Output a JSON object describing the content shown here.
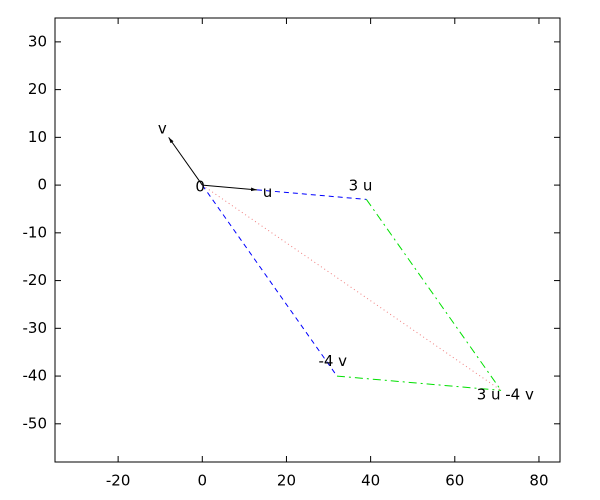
{
  "chart_data": {
    "type": "vector",
    "xlim": [
      -35,
      85
    ],
    "ylim": [
      -58,
      35
    ],
    "xticks": [
      -20,
      0,
      20,
      40,
      60,
      80
    ],
    "yticks": [
      -50,
      -40,
      -30,
      -20,
      -10,
      0,
      10,
      20,
      30
    ],
    "series": [
      {
        "color": "#000000",
        "style": "arrow",
        "x": [
          0,
          13
        ],
        "values": [
          0,
          -1
        ]
      },
      {
        "color": "#000000",
        "style": "arrow",
        "x": [
          0,
          -8
        ],
        "values": [
          0,
          10
        ]
      },
      {
        "color": "#0000ff",
        "style": "dashed",
        "x": [
          13,
          39
        ],
        "values": [
          -1,
          -3
        ]
      },
      {
        "color": "#0000ff",
        "style": "dashed",
        "x": [
          0,
          32
        ],
        "values": [
          0,
          -40
        ]
      },
      {
        "color": "#00e000",
        "style": "dashdot",
        "x": [
          39,
          71
        ],
        "values": [
          -3,
          -43
        ]
      },
      {
        "color": "#00e000",
        "style": "dashdot",
        "x": [
          32,
          71
        ],
        "values": [
          -40,
          -43
        ]
      },
      {
        "color": "#f08080",
        "style": "dotted",
        "x": [
          0,
          71
        ],
        "values": [
          0,
          -43
        ]
      }
    ],
    "annotations": [
      {
        "text": "v",
        "x": -9.5,
        "y": 11.7
      },
      {
        "text": "0",
        "x": -0.5,
        "y": -0.4
      },
      {
        "text": "u",
        "x": 15.5,
        "y": -1.5
      },
      {
        "text": "3 u",
        "x": 37.6,
        "y": -0.2
      },
      {
        "text": "-4 v",
        "x": 31,
        "y": -37
      },
      {
        "text": "3 u -4 v",
        "x": 72,
        "y": -44
      }
    ]
  }
}
